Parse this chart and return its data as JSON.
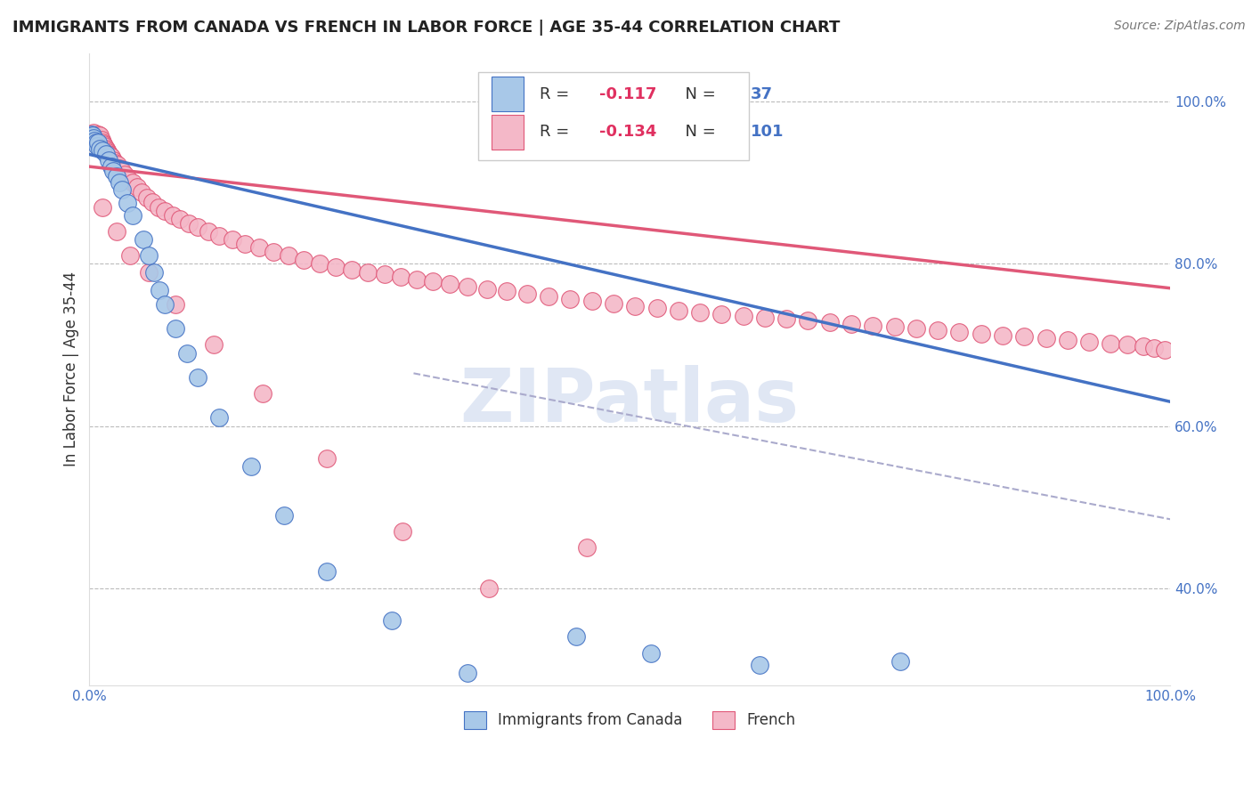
{
  "title": "IMMIGRANTS FROM CANADA VS FRENCH IN LABOR FORCE | AGE 35-44 CORRELATION CHART",
  "source": "Source: ZipAtlas.com",
  "ylabel": "In Labor Force | Age 35-44",
  "legend_labels": [
    "Immigrants from Canada",
    "French"
  ],
  "xlim": [
    0.0,
    1.0
  ],
  "ylim": [
    0.28,
    1.06
  ],
  "xtick_labels": [
    "0.0%",
    "100.0%"
  ],
  "xtick_values": [
    0.0,
    1.0
  ],
  "ytick_labels": [
    "40.0%",
    "60.0%",
    "80.0%",
    "100.0%"
  ],
  "ytick_values": [
    0.4,
    0.6,
    0.8,
    1.0
  ],
  "blue_color": "#a8c8e8",
  "blue_line_color": "#4472c4",
  "pink_color": "#f4b8c8",
  "pink_line_color": "#e05878",
  "R_blue": -0.117,
  "N_blue": 37,
  "R_pink": -0.134,
  "N_pink": 101,
  "blue_scatter_x": [
    0.001,
    0.002,
    0.003,
    0.004,
    0.005,
    0.006,
    0.007,
    0.008,
    0.01,
    0.012,
    0.015,
    0.018,
    0.02,
    0.022,
    0.025,
    0.028,
    0.03,
    0.035,
    0.04,
    0.05,
    0.055,
    0.06,
    0.065,
    0.07,
    0.08,
    0.09,
    0.1,
    0.12,
    0.15,
    0.18,
    0.22,
    0.28,
    0.35,
    0.45,
    0.52,
    0.62,
    0.75
  ],
  "blue_scatter_y": [
    0.955,
    0.96,
    0.958,
    0.955,
    0.952,
    0.95,
    0.945,
    0.95,
    0.942,
    0.94,
    0.935,
    0.928,
    0.92,
    0.915,
    0.908,
    0.9,
    0.892,
    0.875,
    0.86,
    0.83,
    0.81,
    0.79,
    0.768,
    0.75,
    0.72,
    0.69,
    0.66,
    0.61,
    0.55,
    0.49,
    0.42,
    0.36,
    0.295,
    0.34,
    0.32,
    0.305,
    0.31
  ],
  "pink_scatter_x": [
    0.001,
    0.002,
    0.003,
    0.004,
    0.005,
    0.006,
    0.007,
    0.008,
    0.009,
    0.01,
    0.011,
    0.012,
    0.013,
    0.014,
    0.015,
    0.016,
    0.017,
    0.018,
    0.019,
    0.02,
    0.022,
    0.024,
    0.026,
    0.028,
    0.03,
    0.033,
    0.036,
    0.04,
    0.044,
    0.048,
    0.053,
    0.058,
    0.064,
    0.07,
    0.077,
    0.084,
    0.092,
    0.1,
    0.11,
    0.12,
    0.132,
    0.144,
    0.157,
    0.17,
    0.184,
    0.198,
    0.213,
    0.228,
    0.243,
    0.258,
    0.273,
    0.288,
    0.303,
    0.318,
    0.333,
    0.35,
    0.368,
    0.386,
    0.405,
    0.425,
    0.445,
    0.465,
    0.485,
    0.505,
    0.525,
    0.545,
    0.565,
    0.585,
    0.605,
    0.625,
    0.645,
    0.665,
    0.685,
    0.705,
    0.725,
    0.745,
    0.765,
    0.785,
    0.805,
    0.825,
    0.845,
    0.865,
    0.885,
    0.905,
    0.925,
    0.945,
    0.96,
    0.975,
    0.985,
    0.995,
    0.012,
    0.025,
    0.038,
    0.055,
    0.08,
    0.115,
    0.16,
    0.22,
    0.29,
    0.37,
    0.46
  ],
  "pink_scatter_y": [
    0.96,
    0.958,
    0.955,
    0.962,
    0.958,
    0.956,
    0.952,
    0.96,
    0.955,
    0.958,
    0.953,
    0.95,
    0.948,
    0.945,
    0.942,
    0.94,
    0.938,
    0.936,
    0.934,
    0.932,
    0.928,
    0.925,
    0.922,
    0.918,
    0.915,
    0.91,
    0.905,
    0.9,
    0.895,
    0.888,
    0.882,
    0.876,
    0.87,
    0.865,
    0.86,
    0.855,
    0.85,
    0.845,
    0.84,
    0.835,
    0.83,
    0.825,
    0.82,
    0.815,
    0.81,
    0.805,
    0.8,
    0.796,
    0.793,
    0.79,
    0.787,
    0.784,
    0.781,
    0.778,
    0.775,
    0.772,
    0.769,
    0.766,
    0.763,
    0.76,
    0.757,
    0.754,
    0.751,
    0.748,
    0.745,
    0.742,
    0.74,
    0.738,
    0.736,
    0.734,
    0.732,
    0.73,
    0.728,
    0.726,
    0.724,
    0.722,
    0.72,
    0.718,
    0.716,
    0.714,
    0.712,
    0.71,
    0.708,
    0.706,
    0.704,
    0.702,
    0.7,
    0.698,
    0.696,
    0.694,
    0.87,
    0.84,
    0.81,
    0.79,
    0.75,
    0.7,
    0.64,
    0.56,
    0.47,
    0.4,
    0.45
  ],
  "background_color": "#ffffff",
  "grid_color": "#bbbbbb",
  "watermark_text": "ZIPatlas",
  "watermark_color": "#ccd8ee",
  "title_fontsize": 13,
  "axis_label_fontsize": 12,
  "tick_fontsize": 11,
  "blue_trend_start_y": 0.935,
  "blue_trend_end_y": 0.63,
  "pink_trend_start_y": 0.92,
  "pink_trend_end_y": 0.77,
  "dash_trend_start_x": 0.3,
  "dash_trend_start_y": 0.665,
  "dash_trend_end_x": 1.0,
  "dash_trend_end_y": 0.485
}
